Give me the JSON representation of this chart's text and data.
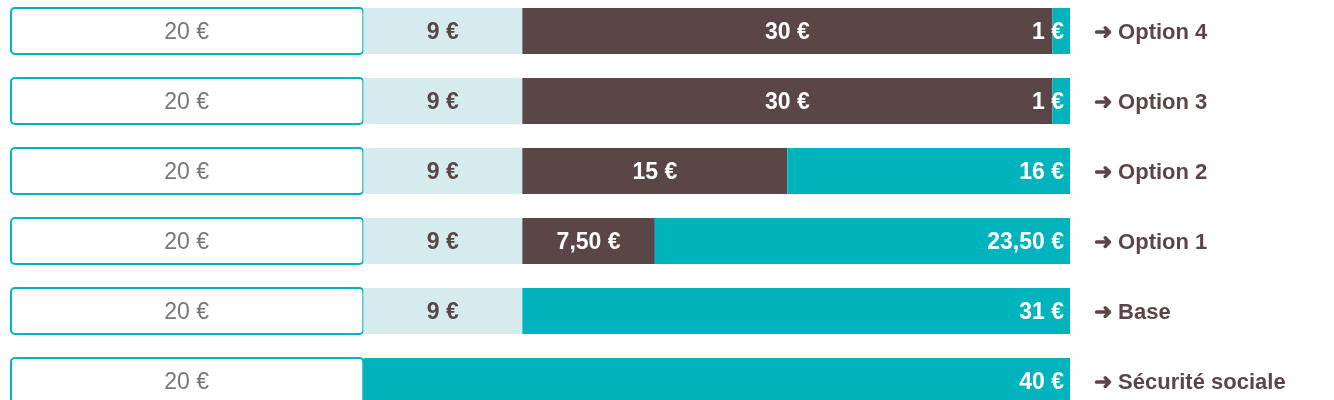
{
  "chart_data": {
    "type": "bar",
    "orientation": "horizontal",
    "stacked": true,
    "tick_labels": "y",
    "xlim": [
      0,
      60
    ],
    "grid": false,
    "categories": [
      "➜ Option 4",
      "➜ Option 3",
      "➜ Option 2",
      "➜ Option 1",
      "➜ Base",
      "➜ Sécurité sociale"
    ],
    "series": [
      {
        "color": "#ffffff",
        "values": [
          20,
          20,
          20,
          20,
          20,
          20
        ],
        "value_labels": [
          "20 €",
          "20 €",
          "20 €",
          "20 €",
          "20 €",
          "20 €"
        ]
      },
      {
        "color": "#d6ebee",
        "values": [
          9,
          9,
          9,
          9,
          9,
          null
        ],
        "value_labels": [
          "9 €",
          "9 €",
          "9 €",
          "9 €",
          "9 €",
          null
        ]
      },
      {
        "color": "#5a4647",
        "values": [
          30,
          30,
          15,
          7.5,
          null,
          null
        ],
        "value_labels": [
          "30 €",
          "30 €",
          "15 €",
          "7,50 €",
          null,
          null
        ]
      },
      {
        "color": "#00b3bd",
        "values": [
          1,
          1,
          16,
          23.5,
          31,
          40
        ],
        "value_labels": [
          "1 €",
          "1 €",
          "16 €",
          "23,50 €",
          "31 €",
          "40 €"
        ]
      }
    ]
  }
}
